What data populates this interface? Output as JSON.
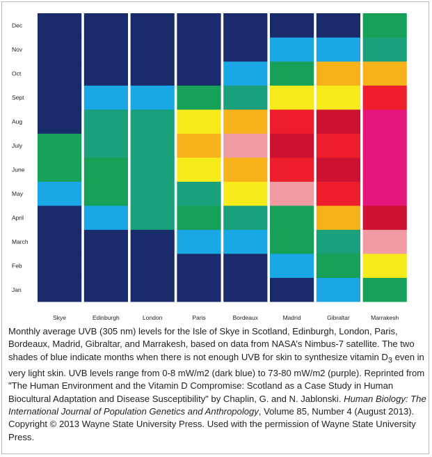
{
  "chart_data": {
    "type": "heatmap",
    "x_labels": [
      "Skye",
      "Edinburgh",
      "London",
      "Paris",
      "Bordeaux",
      "Madrid",
      "Gibraltar",
      "Marrakesh"
    ],
    "y_labels": [
      "Jan",
      "Feb",
      "March",
      "April",
      "May",
      "June",
      "July",
      "Aug",
      "Sept",
      "Oct",
      "Nov",
      "Dec"
    ],
    "level_colors": [
      "#1a2b6b",
      "#1aa7e6",
      "#16a058",
      "#1aa07a",
      "#f6ec1c",
      "#f8b21c",
      "#f09aa2",
      "#ee1d2b",
      "#cc1230",
      "#e5177a"
    ],
    "values": [
      [
        0,
        0,
        0,
        0,
        1,
        2,
        2,
        0,
        0,
        0,
        0,
        0
      ],
      [
        0,
        0,
        0,
        1,
        2,
        2,
        3,
        3,
        1,
        0,
        0,
        0
      ],
      [
        0,
        0,
        0,
        3,
        3,
        3,
        3,
        3,
        1,
        0,
        0,
        0
      ],
      [
        0,
        0,
        1,
        2,
        3,
        4,
        5,
        4,
        2,
        0,
        0,
        0
      ],
      [
        0,
        0,
        1,
        3,
        4,
        5,
        6,
        5,
        3,
        1,
        0,
        0
      ],
      [
        0,
        1,
        2,
        2,
        6,
        7,
        8,
        7,
        4,
        2,
        1,
        0
      ],
      [
        1,
        2,
        3,
        5,
        7,
        8,
        7,
        8,
        4,
        5,
        1,
        0
      ],
      [
        2,
        4,
        6,
        8,
        9,
        9,
        9,
        9,
        7,
        5,
        3,
        2
      ]
    ],
    "grid": false,
    "legend": "none"
  },
  "caption": {
    "part1": "Monthly average UVB (305 nm) levels for the Isle of Skye in Scotland, Edinburgh, London, Paris, Bordeaux, Madrid, Gibraltar, and Marrakesh, based on data from NASA’s Nimbus-7 satellite. The two shades of blue indicate months when there is not enough UVB for skin to synthesize vitamin D",
    "subscript": "3",
    "part2": " even in very light skin. UVB levels range from 0-8 mW/m2 (dark blue) to 73-80 mW/m2 (purple). Reprinted from \"The Human Environment and the Vitamin D Compromise: Scotland as a Case Study in Human Biocultural Adaptation and Disease Susceptibility\" by Chaplin, G. and N. Jablonski. ",
    "journal": "Human Biology: The International Journal of Population Genetics and Anthropology",
    "part3": ", Volume 85, Number 4 (August 2013). Copyright © 2013 Wayne State University Press. Used with the permission of Wayne State University Press."
  }
}
